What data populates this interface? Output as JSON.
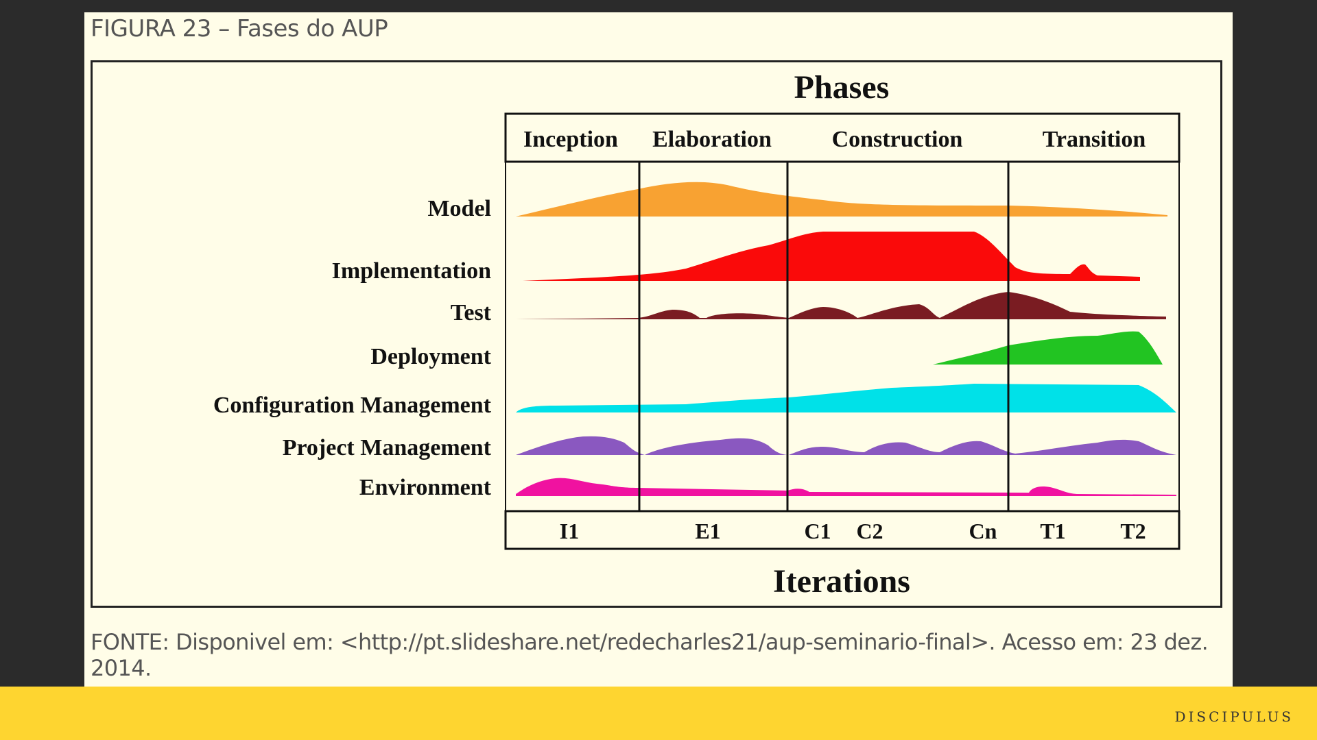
{
  "caption": "FIGURA 23 – Fases do AUP",
  "diagram": {
    "phases_title": "Phases",
    "iterations_title": "Iterations",
    "phases": [
      "Inception",
      "Elaboration",
      "Construction",
      "Transition"
    ],
    "iterations": [
      "I1",
      "E1",
      "C1",
      "C2",
      "Cn",
      "T1",
      "T2"
    ],
    "disciplines": [
      {
        "name": "Model",
        "color": "#f8a232"
      },
      {
        "name": "Implementation",
        "color": "#fa0a0a"
      },
      {
        "name": "Test",
        "color": "#7a1c22"
      },
      {
        "name": "Deployment",
        "color": "#22c422"
      },
      {
        "name": "Configuration Management",
        "color": "#00e1e8"
      },
      {
        "name": "Project Management",
        "color": "#8a58c0"
      },
      {
        "name": "Environment",
        "color": "#f012a0"
      }
    ]
  },
  "source": "FONTE: Disponivel em: <http://pt.slideshare.net/redecharles21/aup-seminario-final>. Acesso em: 23 dez. 2014.",
  "footer": {
    "brand": "DISCIPULUS"
  }
}
